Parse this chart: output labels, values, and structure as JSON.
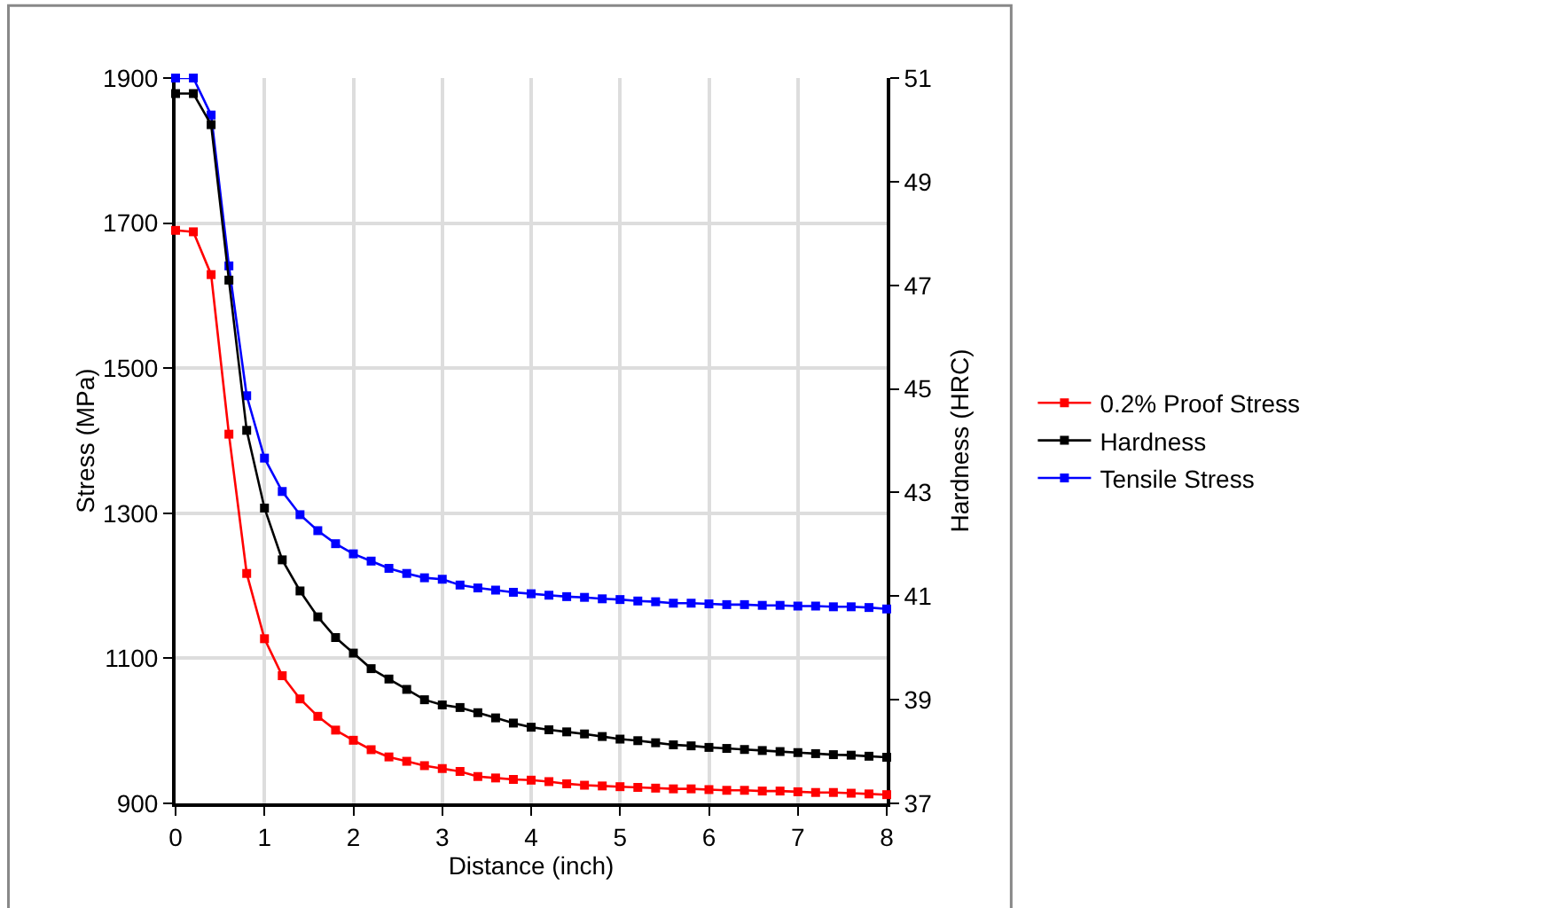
{
  "chart_data": {
    "type": "line",
    "xlabel": "Distance (inch)",
    "ylabel": "Stress (MPa)",
    "y2label": "Hardness (HRC)",
    "x": [
      0,
      0.2,
      0.4,
      0.6,
      0.8,
      1,
      1.2,
      1.4,
      1.6,
      1.8,
      2,
      2.2,
      2.4,
      2.6,
      2.8,
      3,
      3.2,
      3.4,
      3.6,
      3.8,
      4,
      4.2,
      4.4,
      4.6,
      4.8,
      5,
      5.2,
      5.4,
      5.6,
      5.8,
      6,
      6.2,
      6.4,
      6.6,
      6.8,
      7,
      7.2,
      7.4,
      7.6,
      7.8,
      8
    ],
    "series": [
      {
        "name": "0.2% Proof Stress",
        "color": "#ff0000",
        "values": [
          1690,
          1688,
          1629,
          1409,
          1217,
          1127,
          1076,
          1044,
          1020,
          1001,
          987,
          974,
          964,
          958,
          952,
          948,
          944,
          937,
          935,
          933,
          932,
          930,
          927,
          925,
          924,
          923,
          922,
          921,
          920,
          920,
          919,
          918,
          918,
          917,
          917,
          916,
          915,
          915,
          914,
          913,
          912
        ]
      },
      {
        "name": "Hardness",
        "color": "#000000",
        "axis": "y2",
        "values": [
          50.7,
          50.7,
          50.1,
          47.1,
          44.2,
          42.7,
          41.7,
          41.1,
          40.6,
          40.2,
          39.9,
          39.6,
          39.4,
          39.2,
          39.0,
          38.9,
          38.85,
          38.75,
          38.65,
          38.55,
          38.47,
          38.42,
          38.38,
          38.34,
          38.29,
          38.24,
          38.21,
          38.17,
          38.13,
          38.11,
          38.08,
          38.06,
          38.04,
          38.02,
          38.0,
          37.98,
          37.96,
          37.94,
          37.93,
          37.91,
          37.89
        ]
      },
      {
        "name": "Tensile Stress",
        "color": "#0000ff",
        "values": [
          1900,
          1900,
          1849,
          1641,
          1462,
          1376,
          1330,
          1298,
          1276,
          1258,
          1244,
          1234,
          1224,
          1217,
          1211,
          1209,
          1201,
          1197,
          1194,
          1191,
          1189,
          1187,
          1185,
          1184,
          1182,
          1181,
          1179,
          1178,
          1176,
          1176,
          1175,
          1174,
          1174,
          1173,
          1173,
          1172,
          1172,
          1171,
          1171,
          1170,
          1168
        ]
      }
    ],
    "xlim": [
      0,
      8
    ],
    "xticks": [
      0,
      1,
      2,
      3,
      4,
      5,
      6,
      7,
      8
    ],
    "ylim": [
      900,
      1900
    ],
    "yticks": [
      900,
      1100,
      1300,
      1500,
      1700,
      1900
    ],
    "y2lim": [
      37,
      51
    ],
    "y2ticks": [
      37,
      39,
      41,
      43,
      45,
      47,
      49,
      51
    ],
    "grid": true,
    "legend": "right",
    "marker": "square",
    "line_style": "solid"
  }
}
